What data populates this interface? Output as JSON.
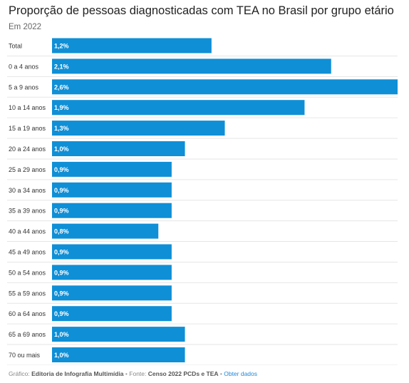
{
  "header": {
    "title": "Proporção de pessoas diagnosticadas com TEA no Brasil por grupo etário",
    "subtitle": "Em 2022"
  },
  "footer": {
    "credit_prefix": "Gráfico:",
    "credit_name": "Editoria de Infografia Multimídia",
    "source_prefix": "Fonte:",
    "source_name": "Censo 2022 PCDs e TEA",
    "get_data_link": "Obter dados",
    "separator": "•"
  },
  "chart_data": {
    "type": "bar",
    "orientation": "horizontal",
    "categories": [
      "Total",
      "0 a 4 anos",
      "5 a 9 anos",
      "10 a 14 anos",
      "15 a 19 anos",
      "20 a 24 anos",
      "25 a 29 anos",
      "30 a 34 anos",
      "35 a 39 anos",
      "40 a 44 anos",
      "45 a 49 anos",
      "50 a 54 anos",
      "55 a 59 anos",
      "60 a 64 anos",
      "65 a 69 anos",
      "70 ou mais"
    ],
    "values": [
      1.2,
      2.1,
      2.6,
      1.9,
      1.3,
      1.0,
      0.9,
      0.9,
      0.9,
      0.8,
      0.9,
      0.9,
      0.9,
      0.9,
      1.0,
      1.0
    ],
    "value_labels": [
      "1,2%",
      "2,1%",
      "2,6%",
      "1,9%",
      "1,3%",
      "1,0%",
      "0,9%",
      "0,9%",
      "0,9%",
      "0,8%",
      "0,9%",
      "0,9%",
      "0,9%",
      "0,9%",
      "1,0%",
      "1,0%"
    ],
    "xlim": [
      0,
      2.6
    ],
    "bar_color": "#0f8fd6",
    "value_label_color": "#ffffff",
    "grid": false,
    "legend": "none"
  }
}
